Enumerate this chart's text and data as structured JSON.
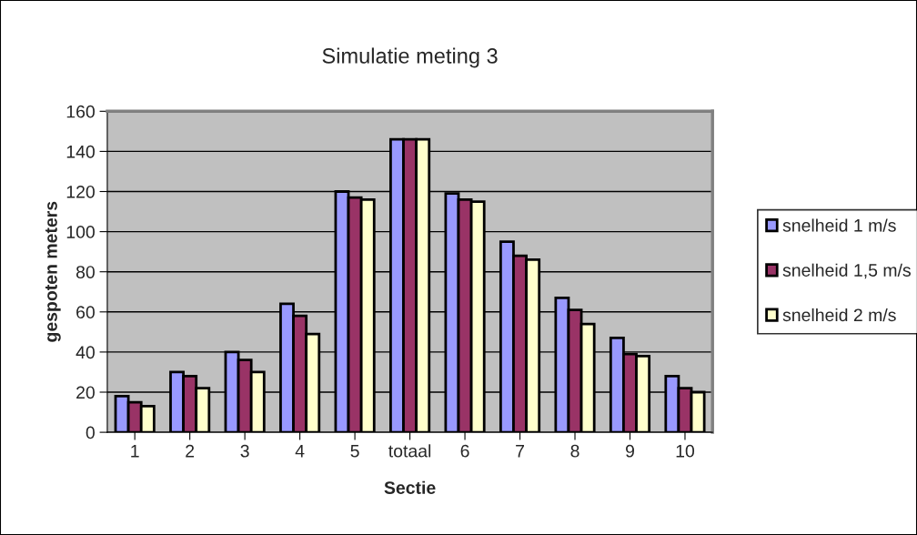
{
  "chart_data": {
    "type": "bar",
    "title": "Simulatie meting 3",
    "xlabel": "Sectie",
    "ylabel": "gespoten meters",
    "categories": [
      "1",
      "2",
      "3",
      "4",
      "5",
      "totaal",
      "6",
      "7",
      "8",
      "9",
      "10"
    ],
    "series": [
      {
        "name": "snelheid 1 m/s",
        "color": "#9999ff",
        "values": [
          18,
          30,
          40,
          64,
          120,
          146,
          119,
          95,
          67,
          47,
          28
        ]
      },
      {
        "name": "snelheid 1,5 m/s",
        "color": "#993366",
        "values": [
          15,
          28,
          36,
          58,
          117,
          146,
          116,
          88,
          61,
          39,
          22
        ]
      },
      {
        "name": "snelheid 2 m/s",
        "color": "#ffffcc",
        "values": [
          13,
          22,
          30,
          49,
          116,
          146,
          115,
          86,
          54,
          38,
          20
        ]
      }
    ],
    "ylim": [
      0,
      160
    ],
    "yticks": [
      0,
      20,
      40,
      60,
      80,
      100,
      120,
      140,
      160
    ],
    "grid": "y",
    "legend": "right"
  }
}
